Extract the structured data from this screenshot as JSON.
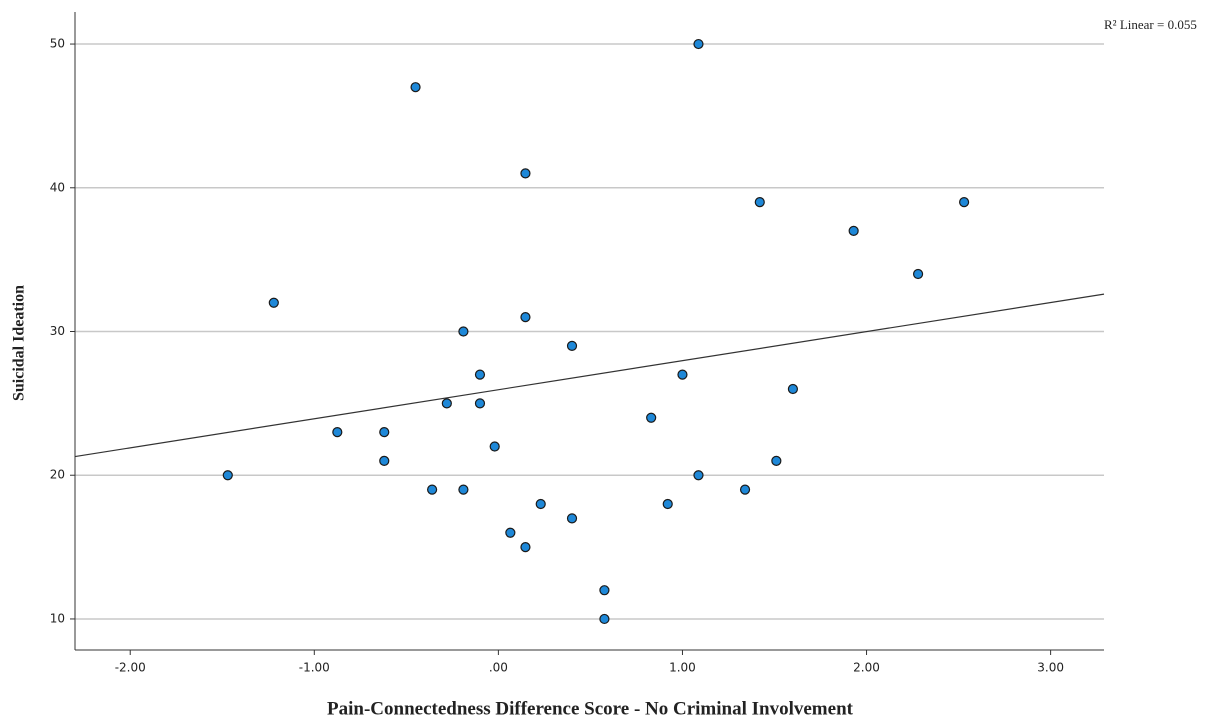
{
  "chart_data": {
    "type": "scatter",
    "x_label": "Pain-Connectedness Difference Score - No Criminal Involvement",
    "y_label": "Suicidal Ideation",
    "annotation": "R² Linear = 0.055",
    "series": [
      {
        "color": "#1e88d8",
        "x": [
          1.087,
          -0.45,
          0.147,
          1.42,
          2.53,
          1.93,
          2.28,
          -1.22,
          -0.19,
          0.147,
          0.4,
          -0.1,
          1.0,
          1.6,
          -0.28,
          -0.1,
          0.83,
          -0.875,
          -0.62,
          -0.02,
          -0.62,
          1.51,
          -1.47,
          1.087,
          -0.36,
          -0.19,
          1.34,
          0.23,
          0.92,
          0.4,
          0.065,
          0.147,
          0.576,
          0.576
        ],
        "values": [
          50,
          47,
          41,
          39,
          39,
          37,
          34,
          32,
          30,
          31,
          29,
          27,
          27,
          26,
          25,
          25,
          24,
          23,
          23,
          22,
          21,
          21,
          20,
          20,
          19,
          19,
          19,
          18,
          18,
          17,
          16,
          15,
          12,
          10
        ]
      }
    ],
    "fit_line": {
      "color": "#333333",
      "x": [
        -2.3,
        3.29
      ],
      "y": [
        21.3,
        32.6
      ]
    },
    "xlim": [
      -2.3,
      3.29
    ],
    "ylim": [
      7.84,
      52.23
    ],
    "xticks": [
      {
        "value": -2,
        "label": "-2.00"
      },
      {
        "value": -1,
        "label": "-1.00"
      },
      {
        "value": 0,
        "label": ".00"
      },
      {
        "value": 1,
        "label": "1.00"
      },
      {
        "value": 2,
        "label": "2.00"
      },
      {
        "value": 3,
        "label": "3.00"
      }
    ],
    "yticks": [
      10,
      20,
      30,
      40,
      50
    ],
    "grid": true
  }
}
